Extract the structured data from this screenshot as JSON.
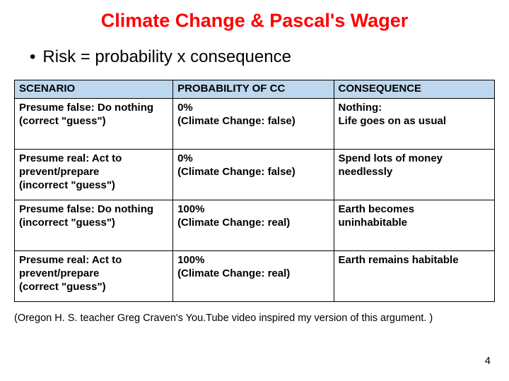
{
  "title": "Climate Change & Pascal's Wager",
  "bullet": "Risk = probability x consequence",
  "table": {
    "headers": {
      "scenario": "SCENARIO",
      "probability": "PROBABILITY OF CC",
      "consequence": "CONSEQUENCE"
    },
    "rows": [
      {
        "scenario_l1": "Presume false: Do nothing",
        "scenario_l2": "(correct \"guess\")",
        "prob_l1": "0%",
        "prob_l2": "(Climate Change: false)",
        "cons_l1": "Nothing:",
        "cons_l2": "Life goes on as usual"
      },
      {
        "scenario_l1": "Presume real: Act to",
        "scenario_l2": "prevent/prepare",
        "scenario_l3": "(incorrect \"guess\")",
        "prob_l1": "0%",
        "prob_l2": "(Climate Change: false)",
        "cons_l1": "Spend lots of money",
        "cons_l2": "needlessly"
      },
      {
        "scenario_l1": "Presume false: Do nothing",
        "scenario_l2": "(incorrect \"guess\")",
        "prob_l1": "100%",
        "prob_l2": "(Climate Change: real)",
        "cons_l1": "Earth becomes",
        "cons_l2": "uninhabitable"
      },
      {
        "scenario_l1": "Presume real: Act to",
        "scenario_l2": "prevent/prepare",
        "scenario_l3": "(correct \"guess\")",
        "prob_l1": "100%",
        "prob_l2": "(Climate Change: real)",
        "cons_l1": "Earth remains habitable",
        "cons_l2": ""
      }
    ]
  },
  "footnote": "(Oregon H. S. teacher Greg Craven's You.Tube video inspired my version of this argument. )",
  "page_number": "4",
  "colors": {
    "title": "#ff0000",
    "header_bg": "#bdd7ee",
    "border": "#000000",
    "text": "#000000",
    "background": "#ffffff"
  },
  "fontsize": {
    "title": 27,
    "bullet": 24,
    "table": 15,
    "footnote": 14.5
  }
}
